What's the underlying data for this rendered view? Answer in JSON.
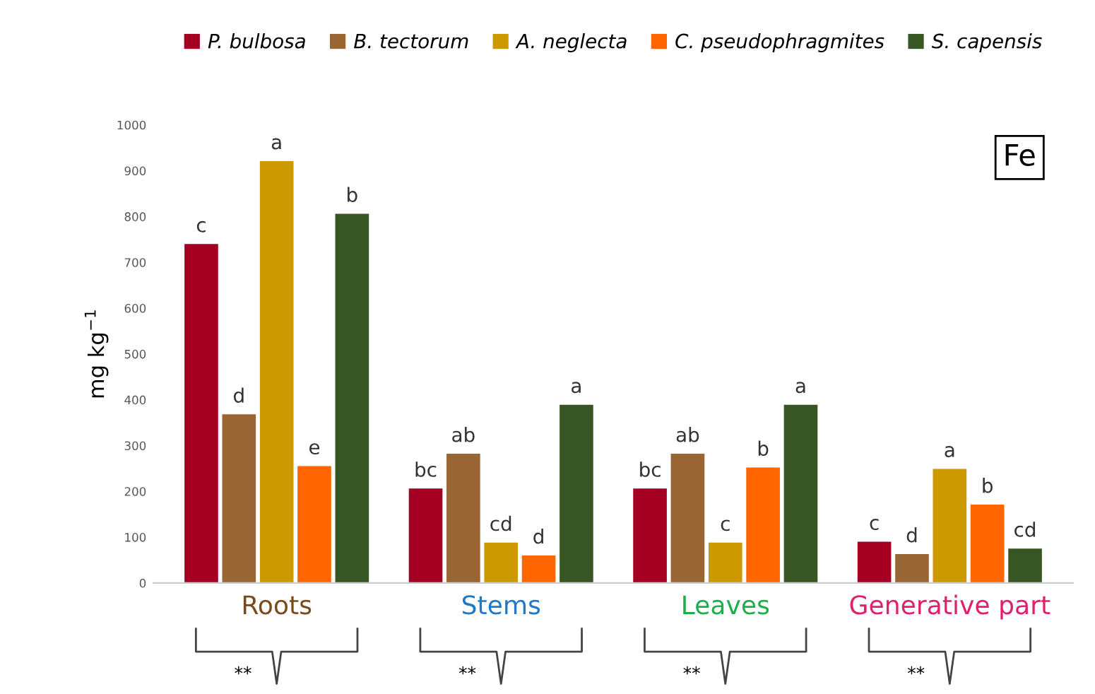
{
  "chart_data": {
    "type": "bar",
    "ylabel": "mg kg$^{−1}$",
    "categories": [
      "Roots",
      "Stems",
      "Leaves",
      "Generative part"
    ],
    "series": [
      {
        "name": "P. bulbosa",
        "color": "#a50021",
        "values": [
          740,
          206,
          206,
          90
        ],
        "value_labels": [
          "c",
          "bc",
          "bc",
          "c"
        ]
      },
      {
        "name": "B. tectorum",
        "color": "#996633",
        "values": [
          368,
          282,
          282,
          63
        ],
        "value_labels": [
          "d",
          "ab",
          "ab",
          "d"
        ]
      },
      {
        "name": "A. neglecta",
        "color": "#cc9900",
        "values": [
          921,
          88,
          88,
          249
        ],
        "value_labels": [
          "a",
          "cd",
          "c",
          "a"
        ]
      },
      {
        "name": "C. pseudophragmites",
        "color": "#ff6600",
        "values": [
          255,
          60,
          252,
          171
        ],
        "value_labels": [
          "e",
          "d",
          "b",
          "b"
        ]
      },
      {
        "name": "S. capensis",
        "color": "#375623",
        "values": [
          806,
          389,
          389,
          75
        ],
        "value_labels": [
          "b",
          "a",
          "a",
          "cd"
        ]
      }
    ],
    "annotations": [
      "Fe",
      "**",
      "**",
      "**",
      "**"
    ],
    "ylim": [
      0,
      1000
    ],
    "yticks": [
      0,
      100,
      200,
      300,
      400,
      500,
      600,
      700,
      800,
      900,
      1000
    ],
    "grid": false,
    "legend": "top"
  }
}
